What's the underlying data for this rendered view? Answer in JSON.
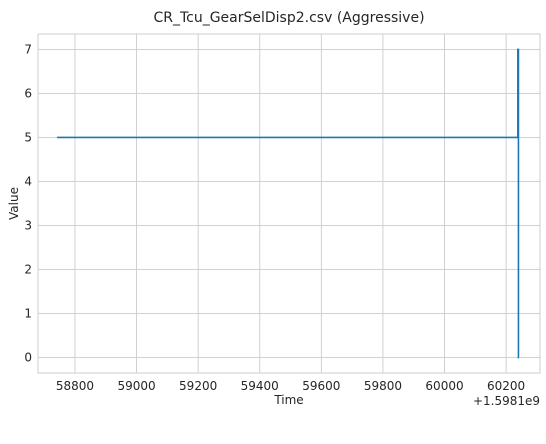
{
  "chart_data": {
    "type": "line",
    "title": "CR_Tcu_GearSelDisp2.csv (Aggressive)",
    "xlabel": "Time",
    "ylabel": "Value",
    "x_offset_text": "+1.5981e9",
    "xlim": [
      58680,
      60310
    ],
    "ylim": [
      -0.35,
      7.35
    ],
    "x_ticks": [
      58800,
      59000,
      59200,
      59400,
      59600,
      59800,
      60000,
      60200
    ],
    "x_tick_labels": [
      "58800",
      "59000",
      "59200",
      "59400",
      "59600",
      "59800",
      "60000",
      "60200"
    ],
    "y_ticks": [
      0,
      1,
      2,
      3,
      4,
      5,
      6,
      7
    ],
    "y_tick_labels": [
      "0",
      "1",
      "2",
      "3",
      "4",
      "5",
      "6",
      "7"
    ],
    "grid": true,
    "series": [
      {
        "color": "#1f77b4",
        "x": [
          58742,
          60238,
          60238,
          60240,
          60240,
          60242
        ],
        "y": [
          5,
          5,
          7,
          7,
          0,
          0
        ]
      }
    ]
  }
}
